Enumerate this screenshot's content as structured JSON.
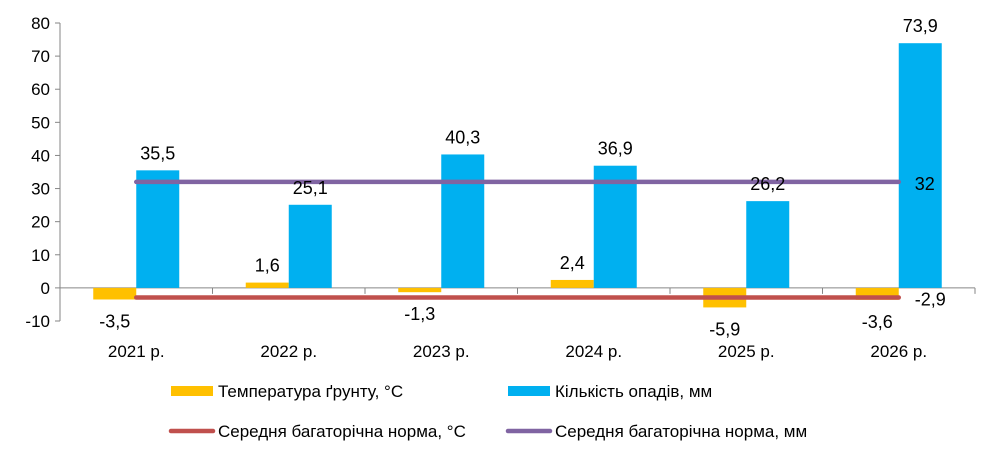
{
  "chart_data": {
    "type": "bar",
    "categories": [
      "2021 р.",
      "2022 р.",
      "2023 р.",
      "2024 р.",
      "2025 р.",
      "2026 р."
    ],
    "ylim": [
      -10,
      80
    ],
    "yticks": [
      -10,
      0,
      10,
      20,
      30,
      40,
      50,
      60,
      70,
      80
    ],
    "grid": false,
    "legend_position": "bottom",
    "series": [
      {
        "name": "Температура ґрунту, °С",
        "kind": "bar",
        "color": "#FFC000",
        "values": [
          -3.5,
          1.6,
          -1.3,
          2.4,
          -5.9,
          -3.6
        ],
        "labels": [
          "-3,5",
          "1,6",
          "-1,3",
          "2,4",
          "-5,9",
          "-3,6"
        ]
      },
      {
        "name": "Кількість опадів, мм",
        "kind": "bar",
        "color": "#00B0F0",
        "values": [
          35.5,
          25.1,
          40.3,
          36.9,
          26.2,
          73.9
        ],
        "labels": [
          "35,5",
          "25,1",
          "40,3",
          "36,9",
          "26,2",
          "73,9"
        ]
      },
      {
        "name": "Середня багаторічна норма, °С",
        "kind": "line",
        "color": "#C0504D",
        "values": [
          -2.9,
          -2.9,
          -2.9,
          -2.9,
          -2.9,
          -2.9
        ],
        "end_label": "-2,9"
      },
      {
        "name": "Середня багаторічна норма, мм",
        "kind": "line",
        "color": "#8064A2",
        "values": [
          32,
          32,
          32,
          32,
          32,
          32
        ],
        "end_label": "32"
      }
    ]
  }
}
